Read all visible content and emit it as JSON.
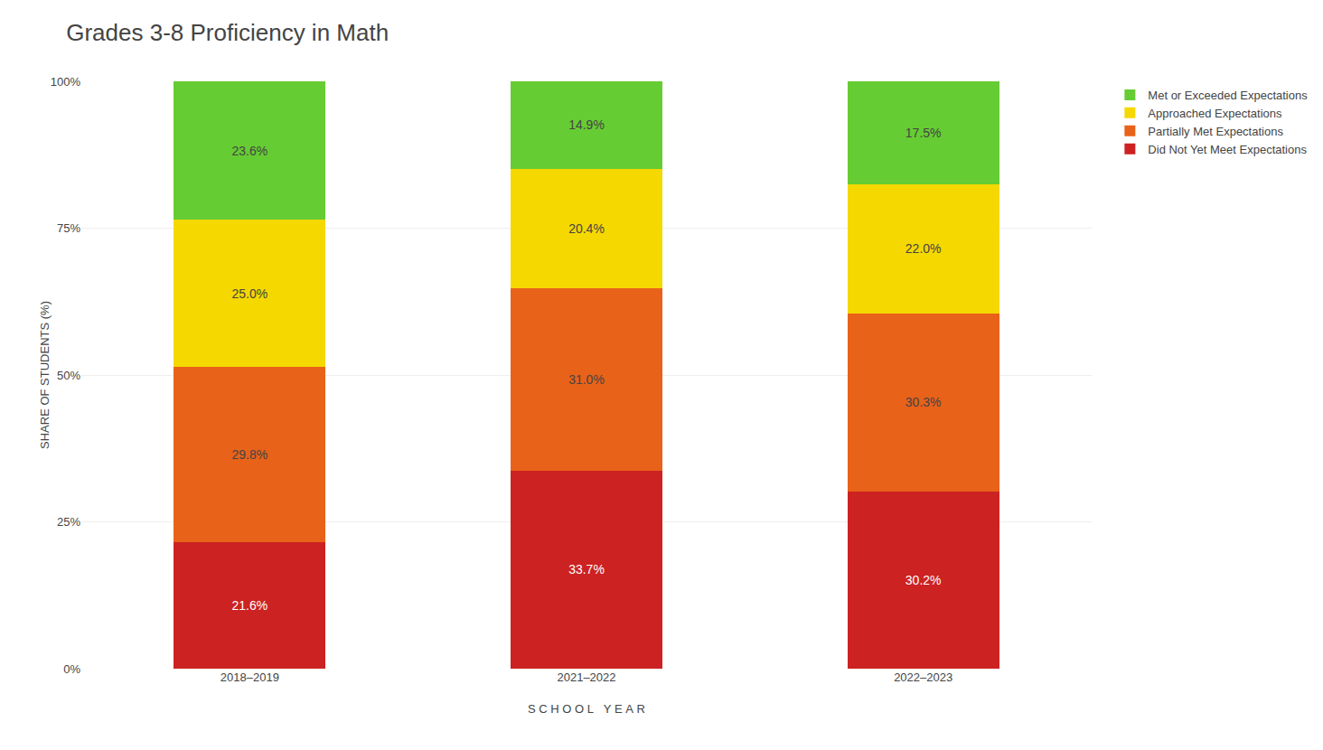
{
  "chart_data": {
    "type": "bar",
    "stacked": true,
    "title": "Grades 3-8 Proficiency in Math",
    "xlabel": "S C H O O L   Y E A R",
    "ylabel": "SHARE OF STUDENTS (%)",
    "categories": [
      "2018–2019",
      "2021–2022",
      "2022–2023"
    ],
    "series": [
      {
        "name": "Did Not Yet Meet Expectations",
        "color": "#cc2222",
        "values": [
          21.6,
          33.7,
          30.2
        ],
        "value_labels": [
          "21.6%",
          "33.7%",
          "30.2%"
        ]
      },
      {
        "name": "Partially Met Expectations",
        "color": "#e8621a",
        "values": [
          29.8,
          31.0,
          30.3
        ],
        "value_labels": [
          "29.8%",
          "31.0%",
          "30.3%"
        ]
      },
      {
        "name": "Approached Expectations",
        "color": "#f5d800",
        "values": [
          25.0,
          20.4,
          22.0
        ],
        "value_labels": [
          "25.0%",
          "20.4%",
          "22.0%"
        ]
      },
      {
        "name": "Met or Exceeded Expectations",
        "color": "#66cc33",
        "values": [
          23.6,
          14.9,
          17.5
        ],
        "value_labels": [
          "23.6%",
          "14.9%",
          "17.5%"
        ]
      }
    ],
    "ylim": [
      0,
      100
    ],
    "yticks": [
      {
        "value": 0,
        "label": "0%"
      },
      {
        "value": 25,
        "label": "25%"
      },
      {
        "value": 50,
        "label": "50%"
      },
      {
        "value": 75,
        "label": "75%"
      },
      {
        "value": 100,
        "label": "100%"
      }
    ],
    "grid": true,
    "data_labels": true,
    "legend": "right"
  }
}
